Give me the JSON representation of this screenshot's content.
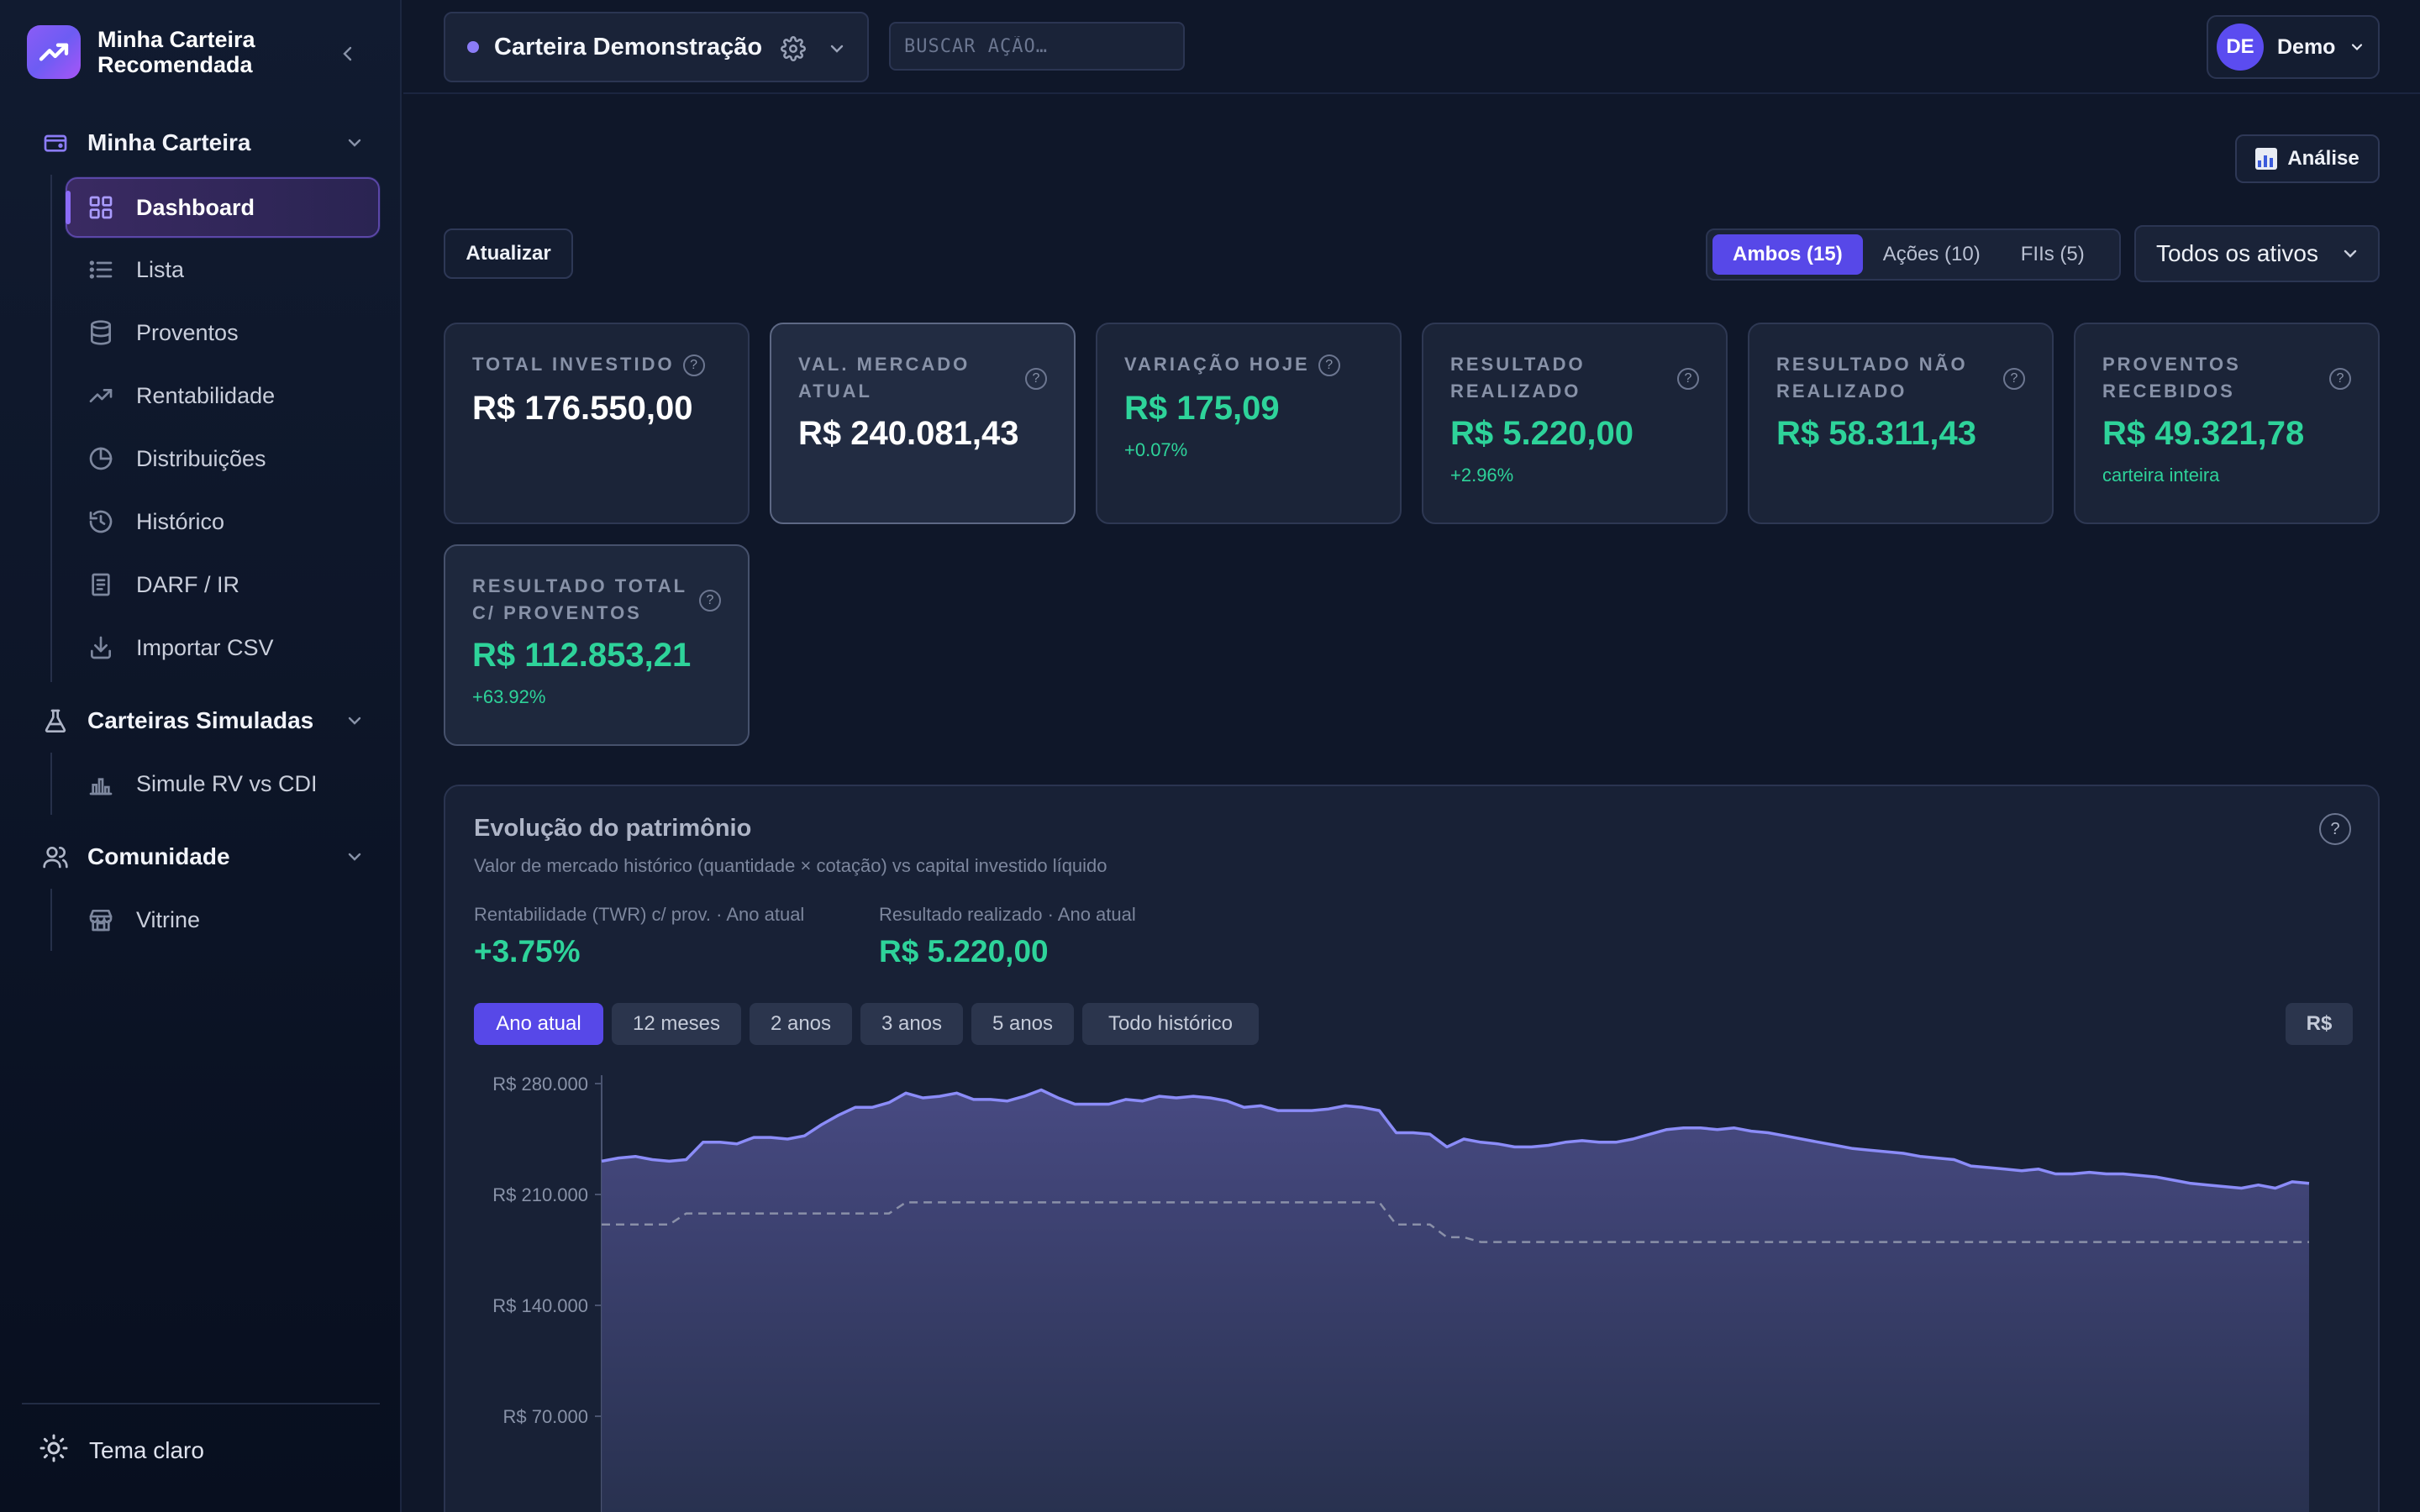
{
  "sidebar": {
    "brand_title": "Minha Carteira Recomendada",
    "sections": [
      {
        "label": "Minha Carteira",
        "items": [
          {
            "label": "Dashboard",
            "icon": "grid-icon",
            "active": true
          },
          {
            "label": "Lista",
            "icon": "list-icon"
          },
          {
            "label": "Proventos",
            "icon": "database-icon"
          },
          {
            "label": "Rentabilidade",
            "icon": "trending-up-icon"
          },
          {
            "label": "Distribuições",
            "icon": "pie-chart-icon"
          },
          {
            "label": "Histórico",
            "icon": "history-icon"
          },
          {
            "label": "DARF / IR",
            "icon": "document-icon"
          },
          {
            "label": "Importar CSV",
            "icon": "download-icon"
          }
        ]
      },
      {
        "label": "Carteiras Simuladas",
        "items": [
          {
            "label": "Simule RV vs CDI",
            "icon": "bar-chart-icon"
          }
        ]
      },
      {
        "label": "Comunidade",
        "items": [
          {
            "label": "Vitrine",
            "icon": "store-icon"
          }
        ]
      }
    ],
    "theme_toggle": "Tema claro"
  },
  "topbar": {
    "wallet_name": "Carteira Demonstração",
    "search_placeholder": "BUSCAR AÇÃO…",
    "user_initials": "DE",
    "user_name": "Demo"
  },
  "toolbar": {
    "analise_label": "Análise",
    "atualizar_label": "Atualizar",
    "segments": [
      {
        "label": "Ambos (15)",
        "active": true
      },
      {
        "label": "Ações (10)",
        "active": false
      },
      {
        "label": "FIIs (5)",
        "active": false
      }
    ],
    "assets_filter": "Todos os ativos"
  },
  "kpis": [
    {
      "label": "Total investido",
      "value": "R$ 176.550,00",
      "sub": "",
      "tone": "white"
    },
    {
      "label": "Val. mercado atual",
      "value": "R$ 240.081,43",
      "sub": "",
      "tone": "white",
      "highlight": true
    },
    {
      "label": "Variação hoje",
      "value": "R$ 175,09",
      "sub": "+0.07%",
      "tone": "green"
    },
    {
      "label": "Resultado realizado",
      "value": "R$ 5.220,00",
      "sub": "+2.96%",
      "tone": "green"
    },
    {
      "label": "Resultado não realizado",
      "value": "R$ 58.311,43",
      "sub": "",
      "tone": "green"
    },
    {
      "label": "Proventos recebidos",
      "value": "R$ 49.321,78",
      "sub": "carteira inteira",
      "tone": "green"
    },
    {
      "label": "Resultado total c/ proventos",
      "value": "R$ 112.853,21",
      "sub": "+63.92%",
      "tone": "green"
    }
  ],
  "panel": {
    "title": "Evolução do patrimônio",
    "subtitle": "Valor de mercado histórico (quantidade × cotação) vs capital investido líquido",
    "stats": [
      {
        "label": "Rentabilidade (TWR) c/ prov. · Ano atual",
        "value": "+3.75%"
      },
      {
        "label": "Resultado realizado · Ano atual",
        "value": "R$ 5.220,00"
      }
    ],
    "ranges": [
      {
        "label": "Ano atual",
        "active": true
      },
      {
        "label": "12 meses",
        "active": false
      },
      {
        "label": "2 anos",
        "active": false
      },
      {
        "label": "3 anos",
        "active": false
      },
      {
        "label": "5 anos",
        "active": false
      },
      {
        "label": "Todo histórico",
        "active": false
      }
    ],
    "currency_label": "R$"
  },
  "colors": {
    "accent": "#5748e8",
    "positive": "#2ed39a",
    "line": "#8b8cf8"
  },
  "chart_data": {
    "type": "area",
    "title": "",
    "xlabel": "",
    "ylabel": "",
    "ylim": [
      0,
      280000
    ],
    "yticks": [
      70000,
      140000,
      210000,
      280000
    ],
    "ytick_labels": [
      "R$ 70.000",
      "R$ 140.000",
      "R$ 210.000",
      "R$ 280.000"
    ],
    "series": [
      {
        "style": "solid",
        "values": [
          231000,
          233000,
          234000,
          232000,
          231000,
          232000,
          243000,
          243000,
          242000,
          246000,
          246000,
          245000,
          247000,
          254000,
          260000,
          265000,
          265000,
          268000,
          274000,
          271000,
          272000,
          274000,
          270000,
          270000,
          269000,
          272000,
          276000,
          271000,
          267000,
          267000,
          267000,
          270000,
          269000,
          272000,
          271000,
          272000,
          271000,
          269000,
          265000,
          266000,
          263000,
          263000,
          263000,
          264000,
          266000,
          265000,
          263000,
          249000,
          249000,
          248000,
          240000,
          245000,
          243000,
          242000,
          240000,
          240000,
          241000,
          243000,
          244000,
          243000,
          243000,
          245000,
          248000,
          251000,
          252000,
          252000,
          251000,
          252000,
          250000,
          249000,
          247000,
          245000,
          243000,
          241000,
          239000,
          238000,
          237000,
          236000,
          234000,
          233000,
          232000,
          228000,
          227000,
          226000,
          225000,
          226000,
          223000,
          223000,
          224000,
          223000,
          223000,
          222000,
          221000,
          219000,
          217000,
          216000,
          215000,
          214000,
          216000,
          214000,
          218000,
          217000
        ]
      },
      {
        "style": "dashed",
        "values": [
          191000,
          191000,
          191000,
          191000,
          191000,
          198000,
          198000,
          198000,
          198000,
          198000,
          198000,
          198000,
          198000,
          198000,
          198000,
          198000,
          198000,
          198000,
          205000,
          205000,
          205000,
          205000,
          205000,
          205000,
          205000,
          205000,
          205000,
          205000,
          205000,
          205000,
          205000,
          205000,
          205000,
          205000,
          205000,
          205000,
          205000,
          205000,
          205000,
          205000,
          205000,
          205000,
          205000,
          205000,
          205000,
          205000,
          205000,
          191000,
          191000,
          191000,
          183000,
          183000,
          180000,
          180000,
          180000,
          180000,
          180000,
          180000,
          180000,
          180000,
          180000,
          180000,
          180000,
          180000,
          180000,
          180000,
          180000,
          180000,
          180000,
          180000,
          180000,
          180000,
          180000,
          180000,
          180000,
          180000,
          180000,
          180000,
          180000,
          180000,
          180000,
          180000,
          180000,
          180000,
          180000,
          180000,
          180000,
          180000,
          180000,
          180000,
          180000,
          180000,
          180000,
          180000,
          180000,
          180000,
          180000,
          180000,
          180000,
          180000,
          180000,
          180000
        ]
      }
    ]
  }
}
